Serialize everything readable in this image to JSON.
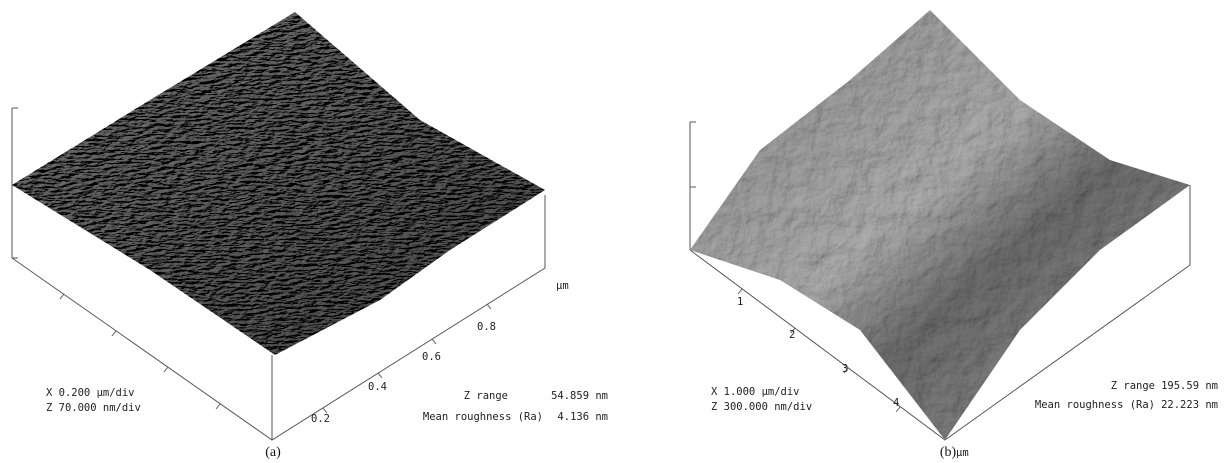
{
  "panels": [
    {
      "caption": "(a)",
      "axis_unit": "µm",
      "ticks": [
        "0.2",
        "0.4",
        "0.6",
        "0.8"
      ],
      "x_scale": "X  0.200 µm/div",
      "z_scale": "Z  70.000 nm/div",
      "z_range_label": "Z range",
      "z_range": "54.859 nm",
      "roughness_label": "Mean roughness (Ra)",
      "roughness": "4.136 nm"
    },
    {
      "caption": "(b)",
      "axis_unit": "µm",
      "ticks": [
        "1",
        "2",
        "3",
        "4"
      ],
      "x_scale": "X  1.000 µm/div",
      "z_scale": "Z  300.000 nm/div",
      "z_range_label": "Z range",
      "z_range": "195.59 nm",
      "roughness_label": "Mean roughness (Ra)",
      "roughness": "22.223 nm"
    }
  ]
}
